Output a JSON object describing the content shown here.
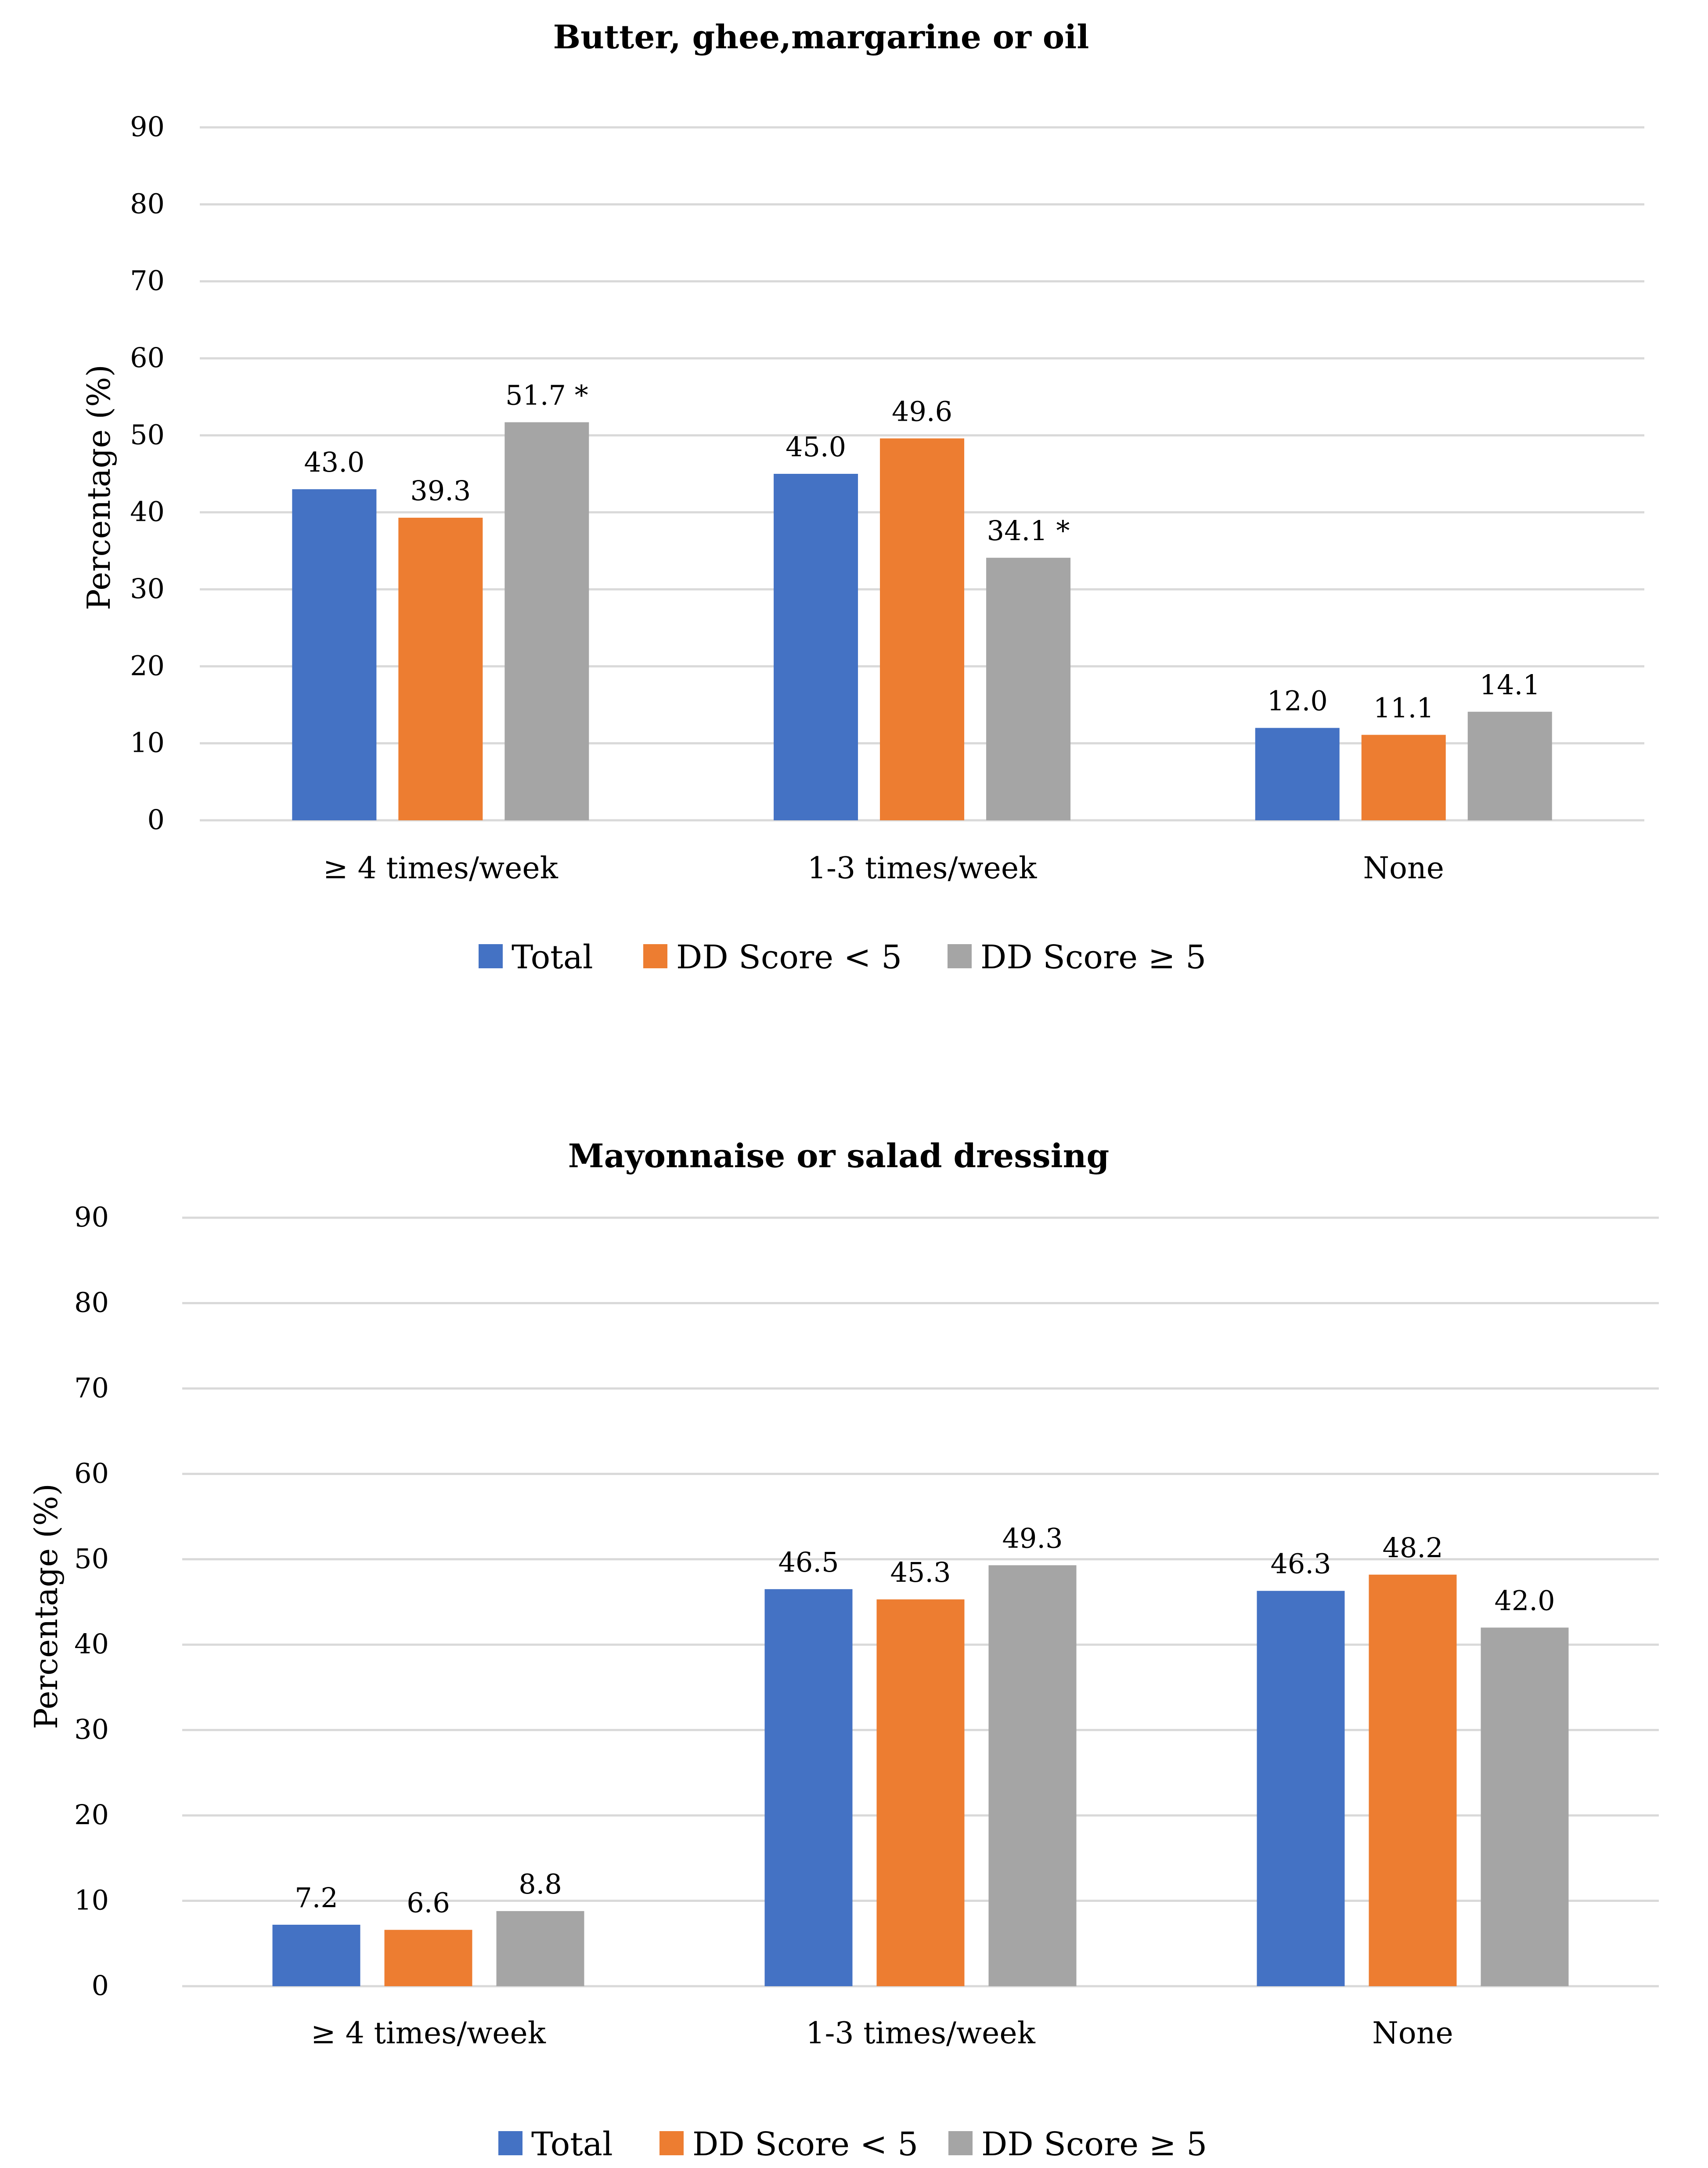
{
  "chart_data": [
    {
      "type": "bar",
      "title": "Butter, ghee,margarine or oil",
      "ylabel": "Percentage (%)",
      "xlabel": "",
      "ylim": [
        0,
        90
      ],
      "yticks": [
        0,
        10,
        20,
        30,
        40,
        50,
        60,
        70,
        80,
        90
      ],
      "categories": [
        "≥ 4 times/week",
        "1-3 times/week",
        "None"
      ],
      "series": [
        {
          "name": "Total",
          "color": "#4472c4",
          "values": [
            43.0,
            45.0,
            12.0
          ],
          "labels": [
            "43.0",
            "45.0",
            "12.0"
          ]
        },
        {
          "name": "DD Score < 5",
          "color": "#ed7d31",
          "values": [
            39.3,
            49.6,
            11.1
          ],
          "labels": [
            "39.3",
            "49.6",
            "11.1"
          ]
        },
        {
          "name": "DD Score ≥ 5",
          "color": "#a5a5a5",
          "values": [
            51.7,
            34.1,
            14.1
          ],
          "labels": [
            "51.7 *",
            "34.1 *",
            "14.1"
          ]
        }
      ],
      "legend": "bottom"
    },
    {
      "type": "bar",
      "title": "Mayonnaise or salad dressing",
      "ylabel": "Percentage (%)",
      "xlabel": "",
      "ylim": [
        0,
        90
      ],
      "yticks": [
        0,
        10,
        20,
        30,
        40,
        50,
        60,
        70,
        80,
        90
      ],
      "categories": [
        "≥ 4 times/week",
        "1-3 times/week",
        "None"
      ],
      "series": [
        {
          "name": "Total",
          "color": "#4472c4",
          "values": [
            7.2,
            46.5,
            46.3
          ],
          "labels": [
            "7.2",
            "46.5",
            "46.3"
          ]
        },
        {
          "name": "DD Score < 5",
          "color": "#ed7d31",
          "values": [
            6.6,
            45.3,
            48.2
          ],
          "labels": [
            "6.6",
            "45.3",
            "48.2"
          ]
        },
        {
          "name": "DD Score ≥ 5",
          "color": "#a5a5a5",
          "values": [
            8.8,
            49.3,
            42.0
          ],
          "labels": [
            "8.8",
            "49.3",
            "42.0"
          ]
        }
      ],
      "legend": "bottom"
    }
  ]
}
